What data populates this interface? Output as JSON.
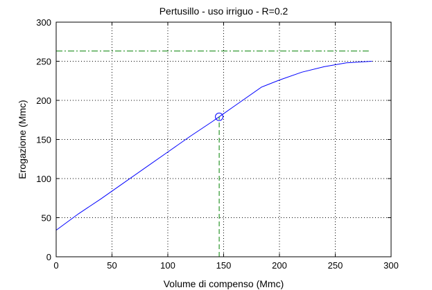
{
  "chart_data": {
    "type": "line",
    "title": "Pertusillo  -  uso irriguo  -   R=0.2",
    "xlabel": "Volume di compenso (Mmc)",
    "ylabel": "Erogazione (Mmc)",
    "xlim": [
      0,
      300
    ],
    "ylim": [
      0,
      300
    ],
    "xticks": [
      0,
      50,
      100,
      150,
      200,
      250,
      300
    ],
    "yticks": [
      0,
      50,
      100,
      150,
      200,
      250,
      300
    ],
    "grid": true,
    "series": [
      {
        "color": "#0000ff",
        "style": "solid",
        "x": [
          0,
          20,
          40,
          60,
          80,
          100,
          120,
          140,
          146,
          160,
          184,
          200,
          220,
          240,
          260,
          283
        ],
        "y": [
          34,
          55,
          74,
          94,
          114,
          134,
          154,
          173,
          179,
          193,
          217,
          226,
          236,
          243,
          248,
          250
        ]
      },
      {
        "color": "#008000",
        "style": "dashdot",
        "x": [
          0,
          280
        ],
        "y": [
          263,
          263
        ]
      },
      {
        "color": "#008000",
        "style": "dashed",
        "x": [
          146,
          146
        ],
        "y": [
          0,
          179
        ]
      }
    ],
    "marker": {
      "x": 146,
      "y": 179,
      "shape": "circle",
      "color": "#0000ff"
    }
  }
}
